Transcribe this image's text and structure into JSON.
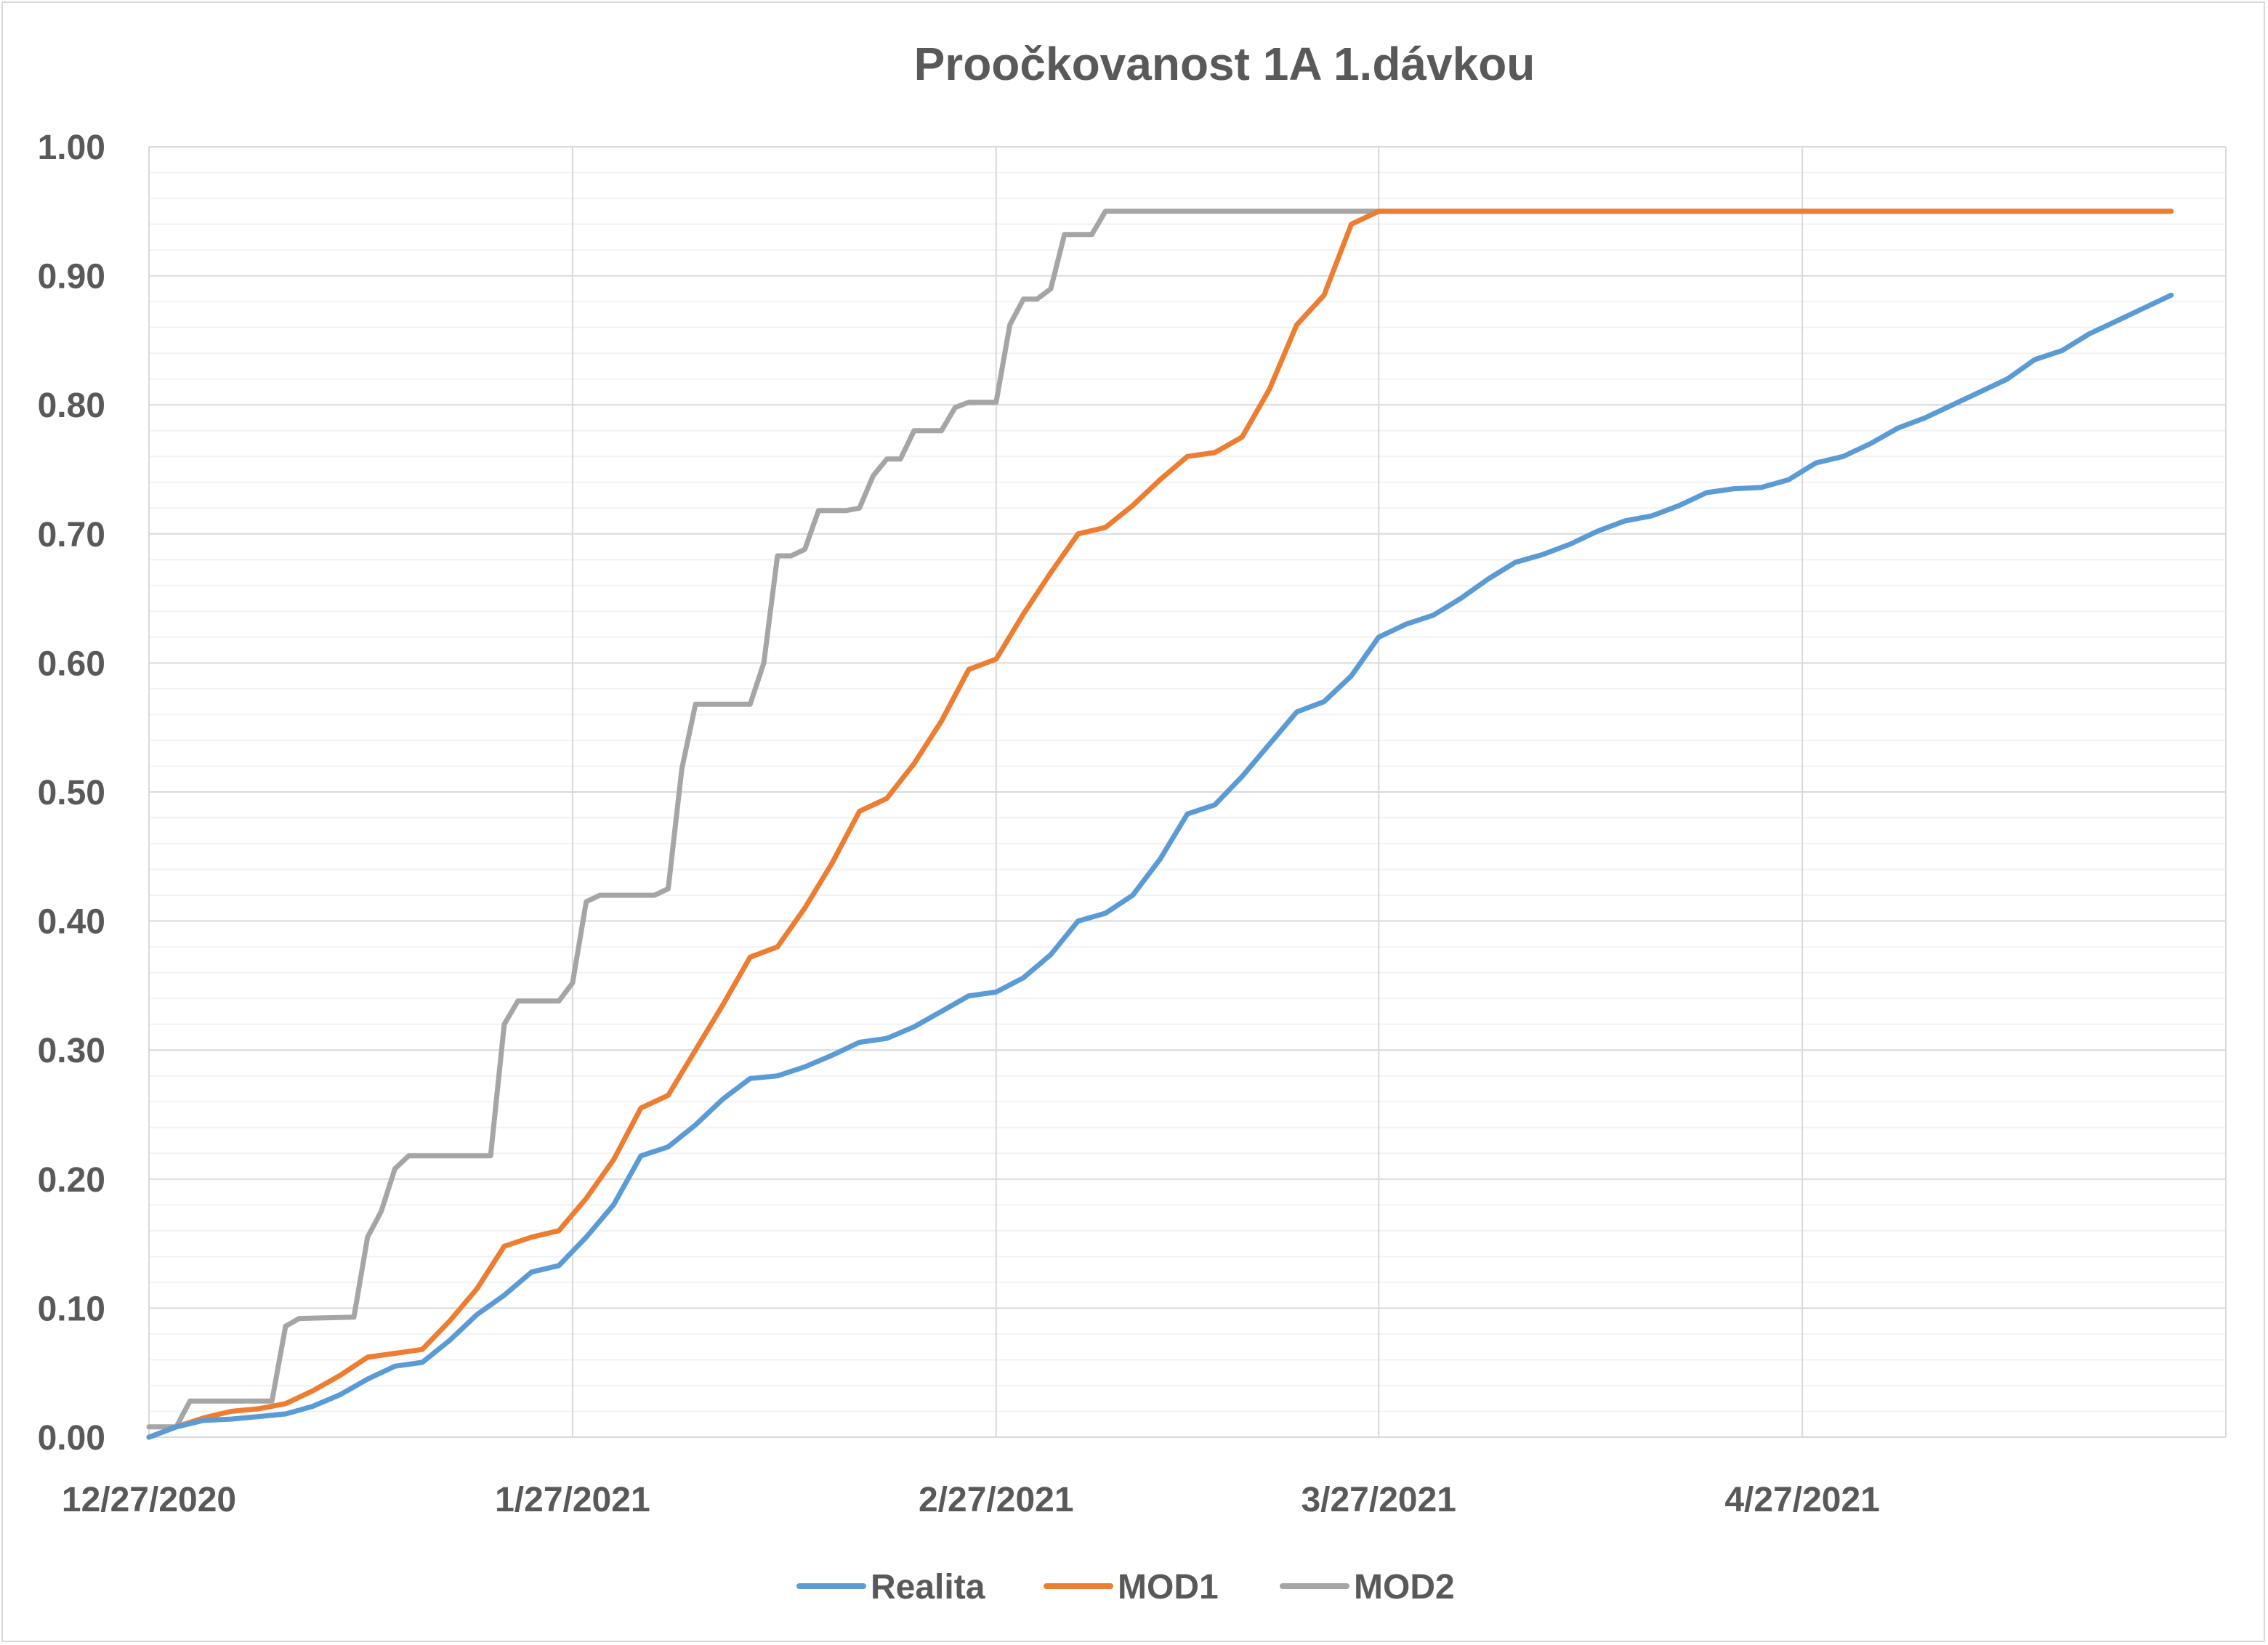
{
  "chart_data": {
    "type": "line",
    "title": "Proočkovanost 1A 1.dávkou",
    "xlabel": "",
    "ylabel": "",
    "x_range": [
      "2020-12-27",
      "2021-05-20"
    ],
    "x_ticks": [
      {
        "date": "2020-12-27",
        "label": "12/27/2020"
      },
      {
        "date": "2021-01-27",
        "label": "1/27/2021"
      },
      {
        "date": "2021-02-27",
        "label": "2/27/2021"
      },
      {
        "date": "2021-03-27",
        "label": "3/27/2021"
      },
      {
        "date": "2021-04-27",
        "label": "4/27/2021"
      }
    ],
    "ylim": [
      0,
      1
    ],
    "y_ticks": [
      "0.00",
      "0.10",
      "0.20",
      "0.30",
      "0.40",
      "0.50",
      "0.60",
      "0.70",
      "0.80",
      "0.90",
      "1.00"
    ],
    "grid": {
      "major": true,
      "minor_horizontal": true
    },
    "legend_position": "bottom",
    "series": [
      {
        "name": "Realita",
        "color": "#5b9bd5",
        "points": [
          [
            "2020-12-27",
            0.0
          ],
          [
            "2020-12-29",
            0.008
          ],
          [
            "2020-12-31",
            0.013
          ],
          [
            "2021-01-02",
            0.014
          ],
          [
            "2021-01-04",
            0.016
          ],
          [
            "2021-01-06",
            0.018
          ],
          [
            "2021-01-08",
            0.024
          ],
          [
            "2021-01-10",
            0.033
          ],
          [
            "2021-01-12",
            0.045
          ],
          [
            "2021-01-14",
            0.055
          ],
          [
            "2021-01-16",
            0.058
          ],
          [
            "2021-01-18",
            0.075
          ],
          [
            "2021-01-20",
            0.095
          ],
          [
            "2021-01-22",
            0.11
          ],
          [
            "2021-01-24",
            0.128
          ],
          [
            "2021-01-26",
            0.133
          ],
          [
            "2021-01-28",
            0.155
          ],
          [
            "2021-01-30",
            0.18
          ],
          [
            "2021-02-01",
            0.218
          ],
          [
            "2021-02-03",
            0.225
          ],
          [
            "2021-02-05",
            0.242
          ],
          [
            "2021-02-07",
            0.262
          ],
          [
            "2021-02-09",
            0.278
          ],
          [
            "2021-02-11",
            0.28
          ],
          [
            "2021-02-13",
            0.287
          ],
          [
            "2021-02-15",
            0.296
          ],
          [
            "2021-02-17",
            0.306
          ],
          [
            "2021-02-19",
            0.309
          ],
          [
            "2021-02-21",
            0.318
          ],
          [
            "2021-02-23",
            0.33
          ],
          [
            "2021-02-25",
            0.342
          ],
          [
            "2021-02-27",
            0.345
          ],
          [
            "2021-03-01",
            0.356
          ],
          [
            "2021-03-03",
            0.374
          ],
          [
            "2021-03-05",
            0.4
          ],
          [
            "2021-03-07",
            0.406
          ],
          [
            "2021-03-09",
            0.42
          ],
          [
            "2021-03-11",
            0.448
          ],
          [
            "2021-03-13",
            0.483
          ],
          [
            "2021-03-15",
            0.49
          ],
          [
            "2021-03-17",
            0.512
          ],
          [
            "2021-03-19",
            0.537
          ],
          [
            "2021-03-21",
            0.562
          ],
          [
            "2021-03-23",
            0.57
          ],
          [
            "2021-03-25",
            0.59
          ],
          [
            "2021-03-27",
            0.62
          ],
          [
            "2021-03-29",
            0.63
          ],
          [
            "2021-03-31",
            0.637
          ],
          [
            "2021-04-02",
            0.65
          ],
          [
            "2021-04-04",
            0.665
          ],
          [
            "2021-04-06",
            0.678
          ],
          [
            "2021-04-08",
            0.684
          ],
          [
            "2021-04-10",
            0.692
          ],
          [
            "2021-04-12",
            0.702
          ],
          [
            "2021-04-14",
            0.71
          ],
          [
            "2021-04-16",
            0.714
          ],
          [
            "2021-04-18",
            0.722
          ],
          [
            "2021-04-20",
            0.732
          ],
          [
            "2021-04-22",
            0.735
          ],
          [
            "2021-04-24",
            0.736
          ],
          [
            "2021-04-26",
            0.742
          ],
          [
            "2021-04-28",
            0.755
          ],
          [
            "2021-04-30",
            0.76
          ],
          [
            "2021-05-02",
            0.77
          ],
          [
            "2021-05-04",
            0.782
          ],
          [
            "2021-05-06",
            0.79
          ],
          [
            "2021-05-08",
            0.8
          ],
          [
            "2021-05-10",
            0.81
          ],
          [
            "2021-05-12",
            0.82
          ],
          [
            "2021-05-14",
            0.835
          ],
          [
            "2021-05-16",
            0.842
          ],
          [
            "2021-05-18",
            0.855
          ],
          [
            "2021-05-20",
            0.865
          ],
          [
            "2021-05-22",
            0.875
          ],
          [
            "2021-05-24",
            0.885
          ]
        ]
      },
      {
        "name": "MOD1",
        "color": "#ed7d31",
        "points": [
          [
            "2020-12-27",
            0.0
          ],
          [
            "2020-12-29",
            0.008
          ],
          [
            "2020-12-31",
            0.015
          ],
          [
            "2021-01-02",
            0.02
          ],
          [
            "2021-01-04",
            0.022
          ],
          [
            "2021-01-06",
            0.026
          ],
          [
            "2021-01-08",
            0.036
          ],
          [
            "2021-01-10",
            0.048
          ],
          [
            "2021-01-12",
            0.062
          ],
          [
            "2021-01-14",
            0.065
          ],
          [
            "2021-01-16",
            0.068
          ],
          [
            "2021-01-18",
            0.09
          ],
          [
            "2021-01-20",
            0.115
          ],
          [
            "2021-01-22",
            0.148
          ],
          [
            "2021-01-24",
            0.155
          ],
          [
            "2021-01-26",
            0.16
          ],
          [
            "2021-01-28",
            0.185
          ],
          [
            "2021-01-30",
            0.215
          ],
          [
            "2021-02-01",
            0.255
          ],
          [
            "2021-02-03",
            0.265
          ],
          [
            "2021-02-05",
            0.3
          ],
          [
            "2021-02-07",
            0.335
          ],
          [
            "2021-02-09",
            0.372
          ],
          [
            "2021-02-11",
            0.38
          ],
          [
            "2021-02-13",
            0.41
          ],
          [
            "2021-02-15",
            0.445
          ],
          [
            "2021-02-17",
            0.485
          ],
          [
            "2021-02-19",
            0.495
          ],
          [
            "2021-02-21",
            0.522
          ],
          [
            "2021-02-23",
            0.555
          ],
          [
            "2021-02-25",
            0.595
          ],
          [
            "2021-02-27",
            0.603
          ],
          [
            "2021-03-01",
            0.638
          ],
          [
            "2021-03-03",
            0.67
          ],
          [
            "2021-03-05",
            0.7
          ],
          [
            "2021-03-07",
            0.705
          ],
          [
            "2021-03-09",
            0.722
          ],
          [
            "2021-03-11",
            0.742
          ],
          [
            "2021-03-13",
            0.76
          ],
          [
            "2021-03-15",
            0.763
          ],
          [
            "2021-03-17",
            0.775
          ],
          [
            "2021-03-19",
            0.812
          ],
          [
            "2021-03-21",
            0.862
          ],
          [
            "2021-03-23",
            0.885
          ],
          [
            "2021-03-25",
            0.94
          ],
          [
            "2021-03-27",
            0.95
          ],
          [
            "2021-05-24",
            0.95
          ]
        ]
      },
      {
        "name": "MOD2",
        "color": "#a5a5a5",
        "points": [
          [
            "2020-12-27",
            0.008
          ],
          [
            "2020-12-29",
            0.008
          ],
          [
            "2020-12-30",
            0.028
          ],
          [
            "2021-01-05",
            0.028
          ],
          [
            "2021-01-06",
            0.086
          ],
          [
            "2021-01-07",
            0.092
          ],
          [
            "2021-01-11",
            0.093
          ],
          [
            "2021-01-12",
            0.155
          ],
          [
            "2021-01-13",
            0.175
          ],
          [
            "2021-01-14",
            0.208
          ],
          [
            "2021-01-15",
            0.218
          ],
          [
            "2021-01-21",
            0.218
          ],
          [
            "2021-01-22",
            0.32
          ],
          [
            "2021-01-23",
            0.338
          ],
          [
            "2021-01-26",
            0.338
          ],
          [
            "2021-01-27",
            0.352
          ],
          [
            "2021-01-28",
            0.415
          ],
          [
            "2021-01-29",
            0.42
          ],
          [
            "2021-02-02",
            0.42
          ],
          [
            "2021-02-03",
            0.425
          ],
          [
            "2021-02-04",
            0.518
          ],
          [
            "2021-02-05",
            0.568
          ],
          [
            "2021-02-09",
            0.568
          ],
          [
            "2021-02-10",
            0.6
          ],
          [
            "2021-02-11",
            0.683
          ],
          [
            "2021-02-12",
            0.683
          ],
          [
            "2021-02-13",
            0.688
          ],
          [
            "2021-02-14",
            0.718
          ],
          [
            "2021-02-16",
            0.718
          ],
          [
            "2021-02-17",
            0.72
          ],
          [
            "2021-02-18",
            0.745
          ],
          [
            "2021-02-19",
            0.758
          ],
          [
            "2021-02-20",
            0.758
          ],
          [
            "2021-02-21",
            0.78
          ],
          [
            "2021-02-23",
            0.78
          ],
          [
            "2021-02-24",
            0.798
          ],
          [
            "2021-02-25",
            0.802
          ],
          [
            "2021-02-27",
            0.802
          ],
          [
            "2021-02-28",
            0.862
          ],
          [
            "2021-03-01",
            0.882
          ],
          [
            "2021-03-02",
            0.882
          ],
          [
            "2021-03-03",
            0.89
          ],
          [
            "2021-03-04",
            0.932
          ],
          [
            "2021-03-06",
            0.932
          ],
          [
            "2021-03-07",
            0.95
          ],
          [
            "2021-05-24",
            0.95
          ]
        ]
      }
    ]
  }
}
